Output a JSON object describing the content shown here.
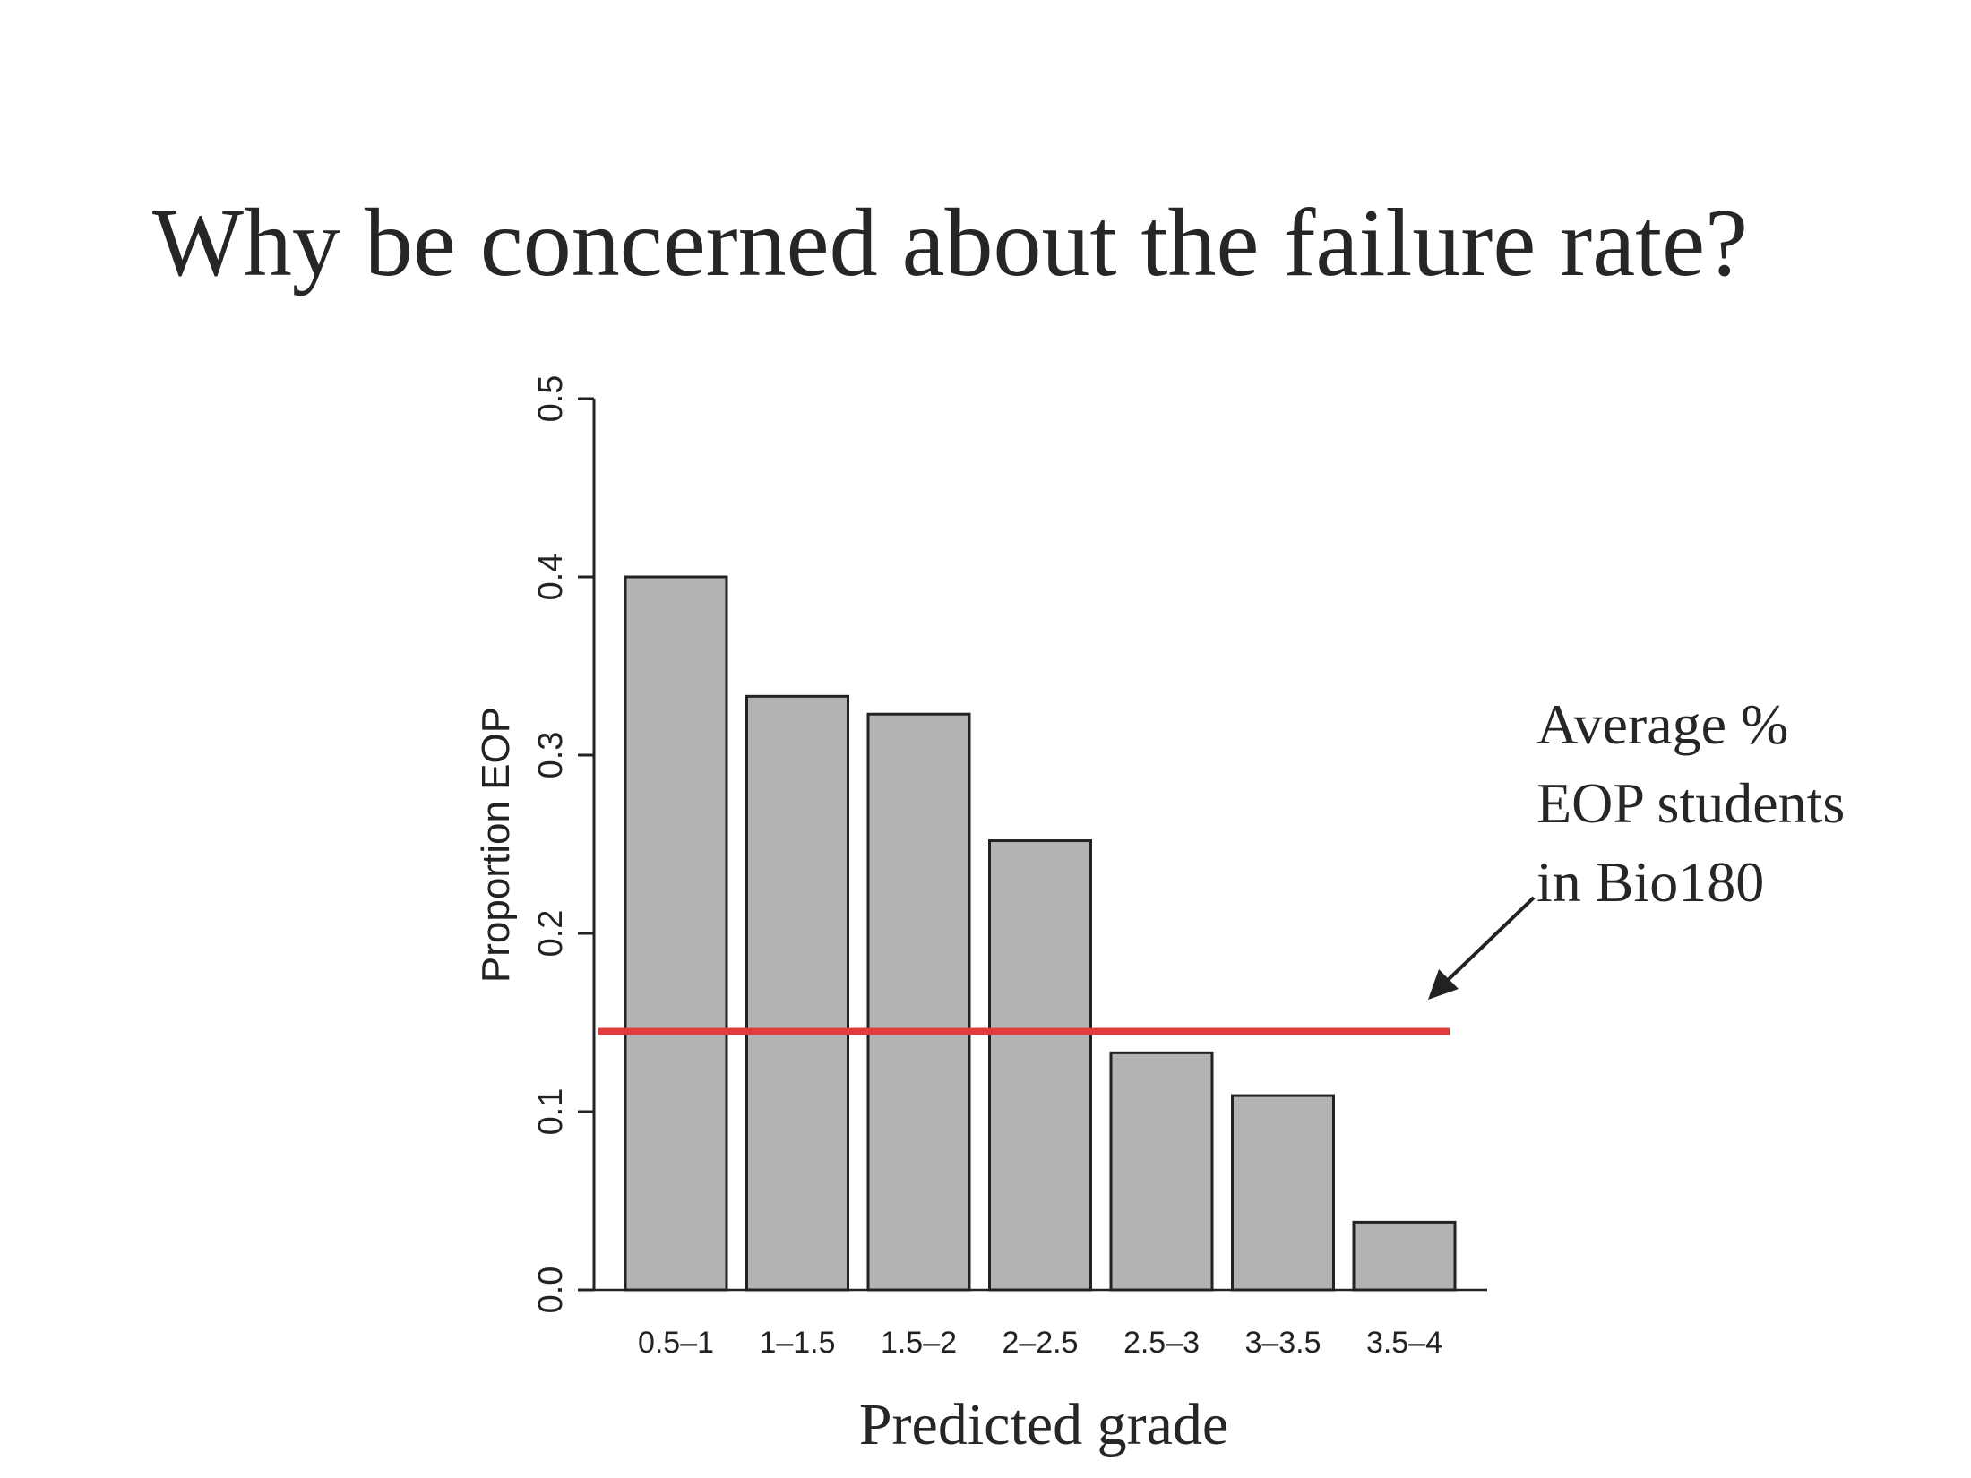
{
  "slide": {
    "title": "Why be concerned about the failure rate?"
  },
  "chart_data": {
    "type": "bar",
    "categories": [
      "0.5–1",
      "1–1.5",
      "1.5–2",
      "2–2.5",
      "2.5–3",
      "3–3.5",
      "3.5–4"
    ],
    "values": [
      0.4,
      0.333,
      0.323,
      0.252,
      0.133,
      0.109,
      0.038
    ],
    "xlabel": "Predicted grade",
    "ylabel": "Proportion EOP",
    "ylim": [
      0,
      0.5
    ],
    "yticks": [
      "0.0",
      "0.1",
      "0.2",
      "0.3",
      "0.4",
      "0.5"
    ],
    "grid": false,
    "reference_line": {
      "value": 0.145,
      "color": "#e03c3c"
    },
    "annotation": {
      "lines": [
        "Average %",
        "EOP students",
        "in Bio180"
      ]
    },
    "colors": {
      "bar_fill": "#b3b3b3",
      "bar_stroke": "#222222",
      "axis": "#222222"
    }
  }
}
